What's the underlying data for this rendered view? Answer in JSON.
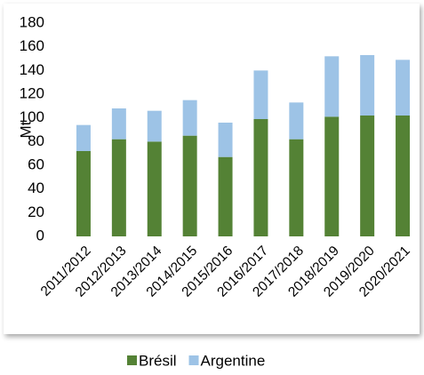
{
  "chart_data": {
    "type": "stacked_bar",
    "y_label": "Mt",
    "categories": [
      "2011/2012",
      "2012/2013",
      "2013/2014",
      "2014/2015",
      "2015/2016",
      "2016/2017",
      "2017/2018",
      "2018/2019",
      "2019/2020",
      "2020/2021"
    ],
    "series": [
      {
        "name": "Brésil",
        "color": "#548235",
        "values": [
          72,
          82,
          80,
          85,
          67,
          99,
          82,
          101,
          102,
          102
        ]
      },
      {
        "name": "Argentine",
        "color": "#9dc3e6",
        "values": [
          22,
          26,
          26,
          30,
          29,
          41,
          31,
          51,
          51,
          47
        ]
      }
    ],
    "ylim": [
      0,
      180
    ],
    "yticks": [
      0,
      20,
      40,
      60,
      80,
      100,
      120,
      140,
      160,
      180
    ],
    "grid": false,
    "legend": "bottom"
  }
}
